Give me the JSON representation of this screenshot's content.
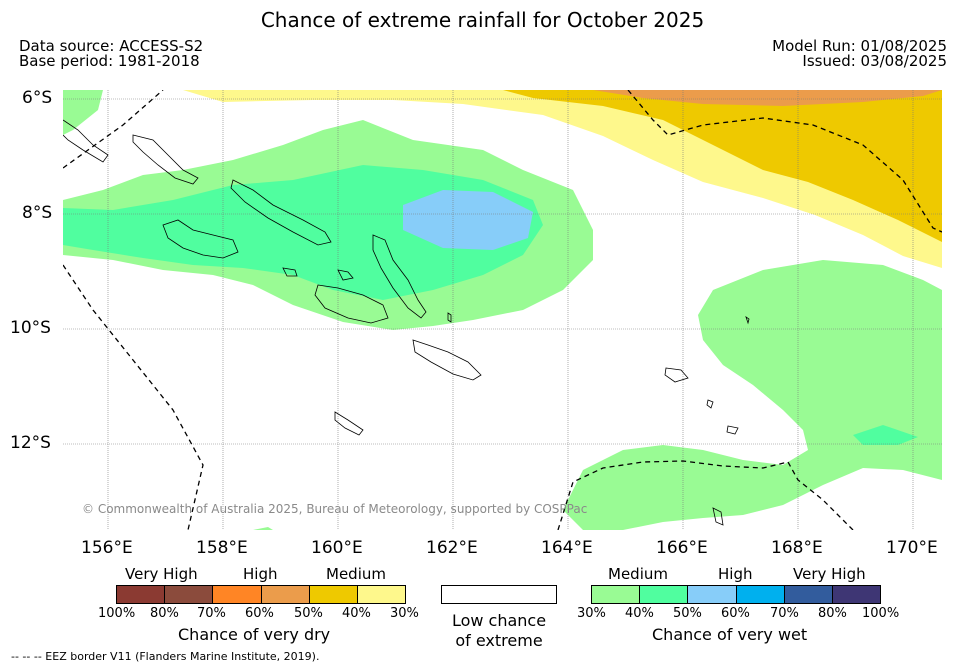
{
  "header": {
    "title": "Chance of extreme rainfall for October 2025",
    "data_source": "Data source: ACCESS-S2",
    "base_period": "Base period: 1981-2018",
    "model_run": "Model Run: 01/08/2025",
    "issued": "Issued: 03/08/2025"
  },
  "axes": {
    "lat_labels": [
      "6°S",
      "8°S",
      "10°S",
      "12°S"
    ],
    "lon_labels": [
      "156°E",
      "158°E",
      "160°E",
      "162°E",
      "164°E",
      "166°E",
      "168°E",
      "170°E"
    ]
  },
  "map": {
    "copyright": "© Commonwealth of Australia 2025, Bureau of Meteorology, supported by COSPPac"
  },
  "legend": {
    "dry": {
      "categories": [
        "Very High",
        "High",
        "Medium"
      ],
      "ticks": [
        "100%",
        "80%",
        "70%",
        "60%",
        "50%",
        "40%",
        "30%"
      ],
      "colors": [
        "#8b3a32",
        "#8b4b3c",
        "#ff8525",
        "#eb9c4b",
        "#eec900",
        "#fef88c"
      ],
      "title": "Chance of very dry"
    },
    "low": {
      "text_line1": "Low chance",
      "text_line2": "of extreme"
    },
    "wet": {
      "categories": [
        "Medium",
        "High",
        "Very High"
      ],
      "ticks": [
        "30%",
        "40%",
        "50%",
        "60%",
        "70%",
        "80%",
        "100%"
      ],
      "colors": [
        "#99fb94",
        "#50fe9f",
        "#87cdf9",
        "#00b0ee",
        "#325c9d",
        "#3e3674"
      ],
      "title": "Chance of very wet"
    },
    "eez_note": "-- -- -- EEZ border V11 (Flanders Marine Institute, 2019)."
  }
}
